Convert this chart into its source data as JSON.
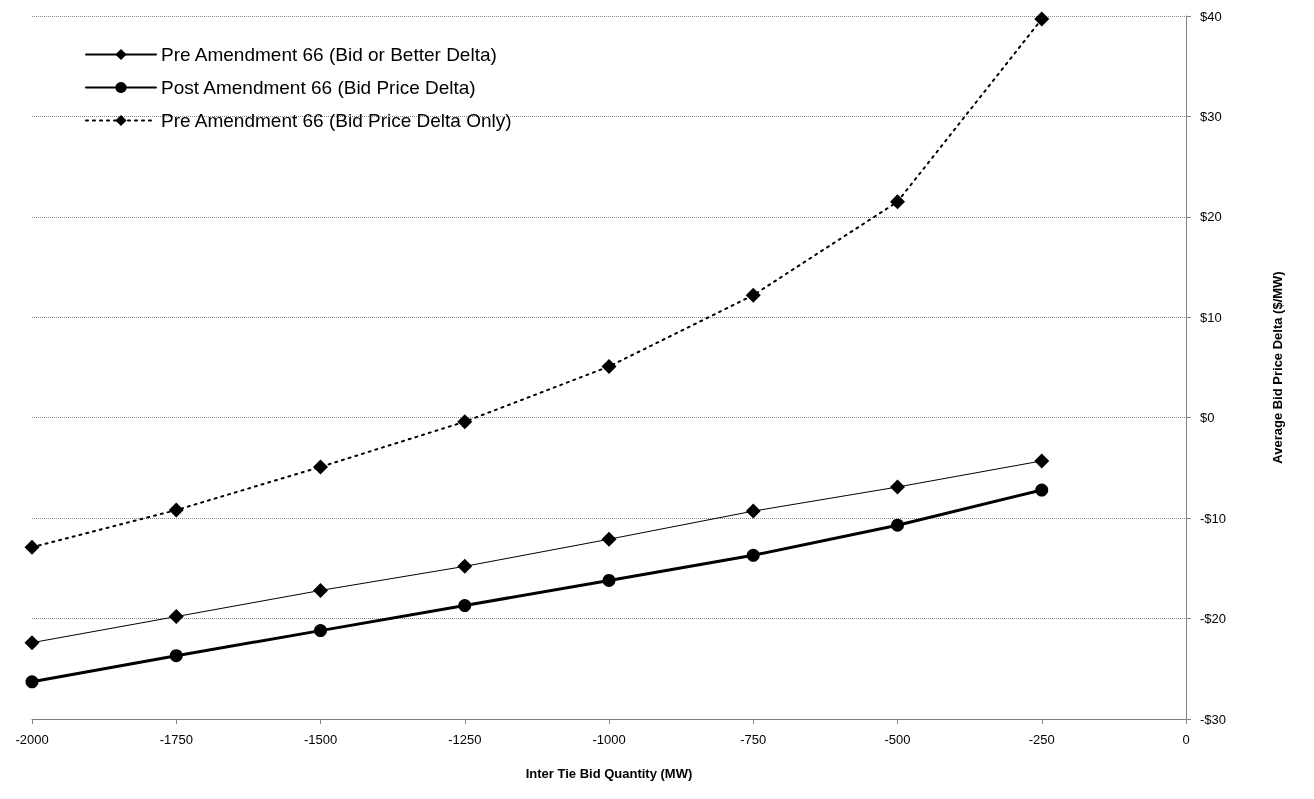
{
  "chart_data": {
    "type": "line",
    "xlabel": "Inter Tie Bid Quantity (MW)",
    "ylabel": "Average Bid Price Delta ($/MW)",
    "x": [
      -2000,
      -1750,
      -1500,
      -1250,
      -1000,
      -750,
      -500,
      -250
    ],
    "xlim": [
      -2000,
      0
    ],
    "xticks": [
      -2000,
      -1750,
      -1500,
      -1250,
      -1000,
      -750,
      -500,
      -250,
      0
    ],
    "ylim": [
      -30,
      40
    ],
    "yticks": [
      {
        "value": -30,
        "label": "-$30"
      },
      {
        "value": -20,
        "label": "-$20"
      },
      {
        "value": -10,
        "label": "-$10"
      },
      {
        "value": 0,
        "label": "$0"
      },
      {
        "value": 10,
        "label": "$10"
      },
      {
        "value": 20,
        "label": "$20"
      },
      {
        "value": 30,
        "label": "$30"
      },
      {
        "value": 40,
        "label": "$40"
      }
    ],
    "grid": "y",
    "legend": "top left",
    "series": [
      {
        "name": "Pre Amendment 66 (Bid or Better Delta)",
        "color": "#000000",
        "marker": "diamond",
        "line_style": "solid",
        "values": [
          -22.4,
          -19.8,
          -17.2,
          -14.8,
          -12.1,
          -9.3,
          -6.9,
          -4.3
        ]
      },
      {
        "name": "Post Amendment 66 (Bid Price Delta)",
        "color": "#000000",
        "marker": "circle",
        "line_style": "solid",
        "values": [
          -26.3,
          -23.7,
          -21.2,
          -18.7,
          -16.2,
          -13.7,
          -10.7,
          -7.2
        ]
      },
      {
        "name": "Pre Amendment 66 (Bid Price Delta Only)",
        "color": "#000000",
        "marker": "diamond",
        "line_style": "dotted",
        "values": [
          -12.9,
          -9.2,
          -4.9,
          -0.4,
          5.1,
          12.2,
          21.5,
          39.7
        ]
      }
    ]
  }
}
